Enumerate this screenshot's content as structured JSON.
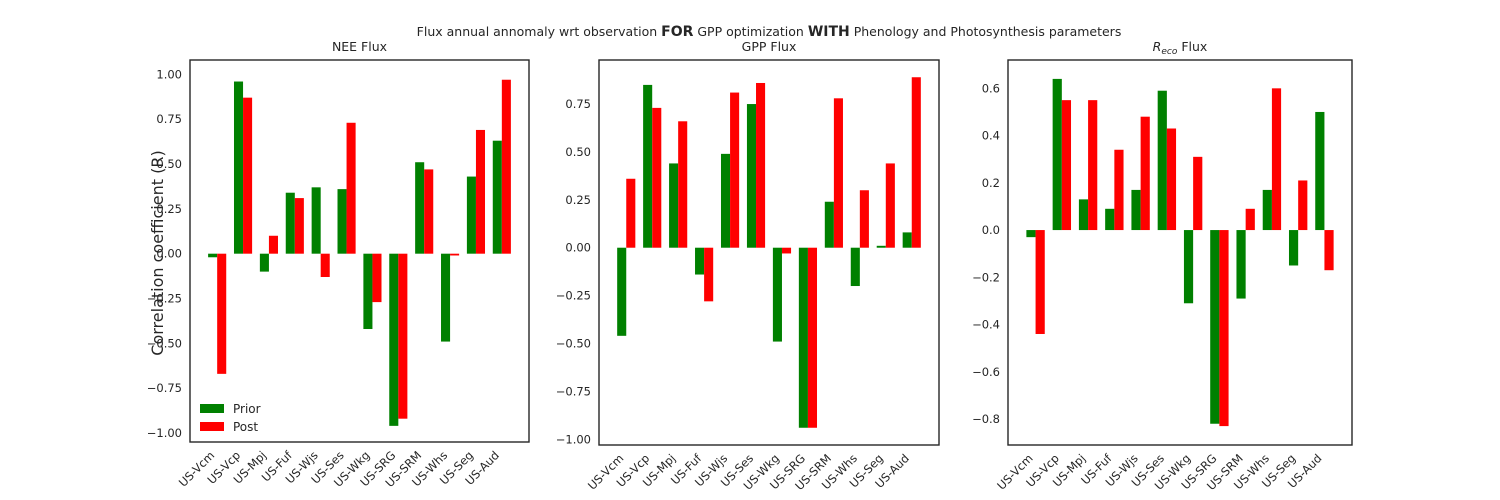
{
  "figure": {
    "suptitle_parts": [
      {
        "text": "Flux annual annomaly wrt observation ",
        "bold": false
      },
      {
        "text": "FOR",
        "bold": true
      },
      {
        "text": " GPP optimization ",
        "bold": false
      },
      {
        "text": "WITH",
        "bold": true
      },
      {
        "text": " Phenology and Photosynthesis parameters",
        "bold": false
      }
    ],
    "ylabel": "Correlation coefficient (R)"
  },
  "colors": {
    "prior": "#008000",
    "post": "#ff0000"
  },
  "legend": {
    "placement": "lower-left",
    "labels": [
      "Prior",
      "Post"
    ]
  },
  "chart_data": [
    {
      "type": "bar",
      "title": "NEE Flux",
      "ylim": [
        -1.05,
        1.08
      ],
      "yticks": [
        -1.0,
        -0.75,
        -0.5,
        -0.25,
        0.0,
        0.25,
        0.5,
        0.75,
        1.0
      ],
      "ytick_labels": [
        "−1.00",
        "−0.75",
        "−0.50",
        "−0.25",
        "0.00",
        "0.25",
        "0.50",
        "0.75",
        "1.00"
      ],
      "categories": [
        "US-Vcm",
        "US-Vcp",
        "US-Mpj",
        "US-Fuf",
        "US-Wjs",
        "US-Ses",
        "US-Wkg",
        "US-SRG",
        "US-SRM",
        "US-Whs",
        "US-Seg",
        "US-Aud"
      ],
      "series": [
        {
          "name": "Prior",
          "values": [
            -0.02,
            0.96,
            -0.1,
            0.34,
            0.37,
            0.36,
            -0.42,
            -0.96,
            0.51,
            -0.49,
            0.43,
            0.63
          ]
        },
        {
          "name": "Post",
          "values": [
            -0.67,
            0.87,
            0.1,
            0.31,
            -0.13,
            0.73,
            -0.27,
            -0.92,
            0.47,
            -0.01,
            0.69,
            0.97
          ]
        }
      ],
      "legend": true
    },
    {
      "type": "bar",
      "title": "GPP Flux",
      "ylim": [
        -1.03,
        0.98
      ],
      "yticks": [
        -1.0,
        -0.75,
        -0.5,
        -0.25,
        0.0,
        0.25,
        0.5,
        0.75
      ],
      "ytick_labels": [
        "−1.00",
        "−0.75",
        "−0.50",
        "−0.25",
        "0.00",
        "0.25",
        "0.50",
        "0.75"
      ],
      "categories": [
        "US-Vcm",
        "US-Vcp",
        "US-Mpj",
        "US-Fuf",
        "US-Wjs",
        "US-Ses",
        "US-Wkg",
        "US-SRG",
        "US-SRM",
        "US-Whs",
        "US-Seg",
        "US-Aud"
      ],
      "series": [
        {
          "name": "Prior",
          "values": [
            -0.46,
            0.85,
            0.44,
            -0.14,
            0.49,
            0.75,
            -0.49,
            -0.94,
            0.24,
            -0.2,
            0.01,
            0.08
          ]
        },
        {
          "name": "Post",
          "values": [
            0.36,
            0.73,
            0.66,
            -0.28,
            0.81,
            0.86,
            -0.03,
            -0.94,
            0.78,
            0.3,
            0.44,
            0.89
          ]
        }
      ],
      "legend": false
    },
    {
      "type": "bar",
      "title_main": "R",
      "title_sub": "eco",
      "title_rest": " Flux",
      "ylim": [
        -0.91,
        0.72
      ],
      "yticks": [
        -0.8,
        -0.6,
        -0.4,
        -0.2,
        0.0,
        0.2,
        0.4,
        0.6
      ],
      "ytick_labels": [
        "−0.8",
        "−0.6",
        "−0.4",
        "−0.2",
        "0.0",
        "0.2",
        "0.4",
        "0.6"
      ],
      "categories": [
        "US-Vcm",
        "US-Vcp",
        "US-Mpj",
        "US-Fuf",
        "US-Wjs",
        "US-Ses",
        "US-Wkg",
        "US-SRG",
        "US-SRM",
        "US-Whs",
        "US-Seg",
        "US-Aud"
      ],
      "series": [
        {
          "name": "Prior",
          "values": [
            -0.03,
            0.64,
            0.13,
            0.09,
            0.17,
            0.59,
            -0.31,
            -0.82,
            -0.29,
            0.17,
            -0.15,
            0.5
          ]
        },
        {
          "name": "Post",
          "values": [
            -0.44,
            0.55,
            0.55,
            0.34,
            0.48,
            0.43,
            0.31,
            -0.83,
            0.09,
            0.6,
            0.21,
            -0.17
          ]
        }
      ],
      "legend": false
    }
  ]
}
